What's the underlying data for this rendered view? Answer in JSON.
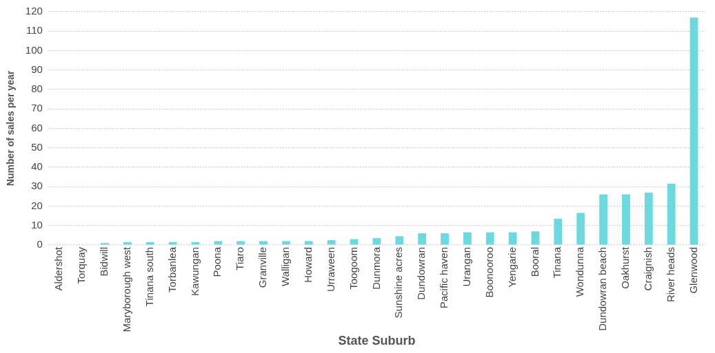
{
  "chart_data": {
    "type": "bar",
    "xlabel": "State Suburb",
    "ylabel": "Number of sales per year",
    "categories": [
      "Aldershot",
      "Torquay",
      "Bidwill",
      "Maryborough west",
      "Tinana south",
      "Torbanlea",
      "Kawungan",
      "Poona",
      "Tiaro",
      "Granville",
      "Walligan",
      "Howard",
      "Urraween",
      "Toogoom",
      "Dunmora",
      "Sunshine acres",
      "Dundowran",
      "Pacific haven",
      "Urangan",
      "Boonooroo",
      "Yengarie",
      "Booral",
      "Tinana",
      "Wondunna",
      "Dundowran beach",
      "Oakhurst",
      "Craignish",
      "River heads",
      "Glenwood"
    ],
    "values": [
      0,
      0,
      1,
      1.5,
      1.5,
      1.5,
      1.5,
      2,
      2,
      2,
      2,
      2,
      2.5,
      3,
      3.5,
      4.5,
      6,
      6,
      6.5,
      6.5,
      6.5,
      7,
      13.5,
      16.5,
      26,
      26,
      27,
      31.5,
      117
    ],
    "color": "#6dd9de",
    "ylim": [
      0,
      120
    ],
    "yticks": [
      0,
      10,
      20,
      30,
      40,
      50,
      60,
      70,
      80,
      90,
      100,
      110,
      120
    ],
    "grid": "y",
    "legend": false
  }
}
